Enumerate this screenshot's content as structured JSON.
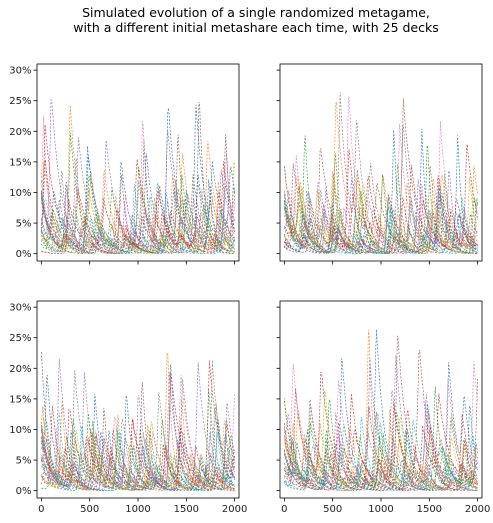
{
  "figure": {
    "title_line1": "Simulated evolution of a single randomized metagame,",
    "title_line2": "with a different initial metashare each time, with 25 decks"
  },
  "chart_data": {
    "type": "line",
    "layout": "2x2 grid, shared x and y axes",
    "n_series_per_panel": 25,
    "line_style": "dashed, thin",
    "grid": false,
    "legend": "none",
    "palette": [
      "#1f77b4",
      "#ff7f0e",
      "#2ca02c",
      "#d62728",
      "#9467bd",
      "#8c564b",
      "#e377c2",
      "#7f7f7f",
      "#bcbd22",
      "#17becf"
    ],
    "xlim": [
      -45,
      2045
    ],
    "ylim": [
      -0.012,
      0.31
    ],
    "x_ticks": [
      0,
      500,
      1000,
      1500,
      2000
    ],
    "x_tick_labels": [
      "0",
      "500",
      "1000",
      "1500",
      "2000"
    ],
    "y_ticks": [
      0,
      0.05,
      0.1,
      0.15,
      0.2,
      0.25,
      0.3
    ],
    "y_tick_labels": [
      "0%",
      "5%",
      "10%",
      "15%",
      "20%",
      "25%",
      "30%"
    ],
    "panels": [
      {
        "name": "top-left",
        "peak_max": 0.27,
        "typical_peak_range": [
          0.08,
          0.21
        ]
      },
      {
        "name": "top-right",
        "peak_max": 0.28,
        "typical_peak_range": [
          0.08,
          0.22
        ]
      },
      {
        "name": "bottom-left",
        "peak_max": 0.265,
        "typical_peak_range": [
          0.08,
          0.21
        ]
      },
      {
        "name": "bottom-right",
        "peak_max": 0.295,
        "typical_peak_range": [
          0.08,
          0.22
        ]
      }
    ]
  }
}
